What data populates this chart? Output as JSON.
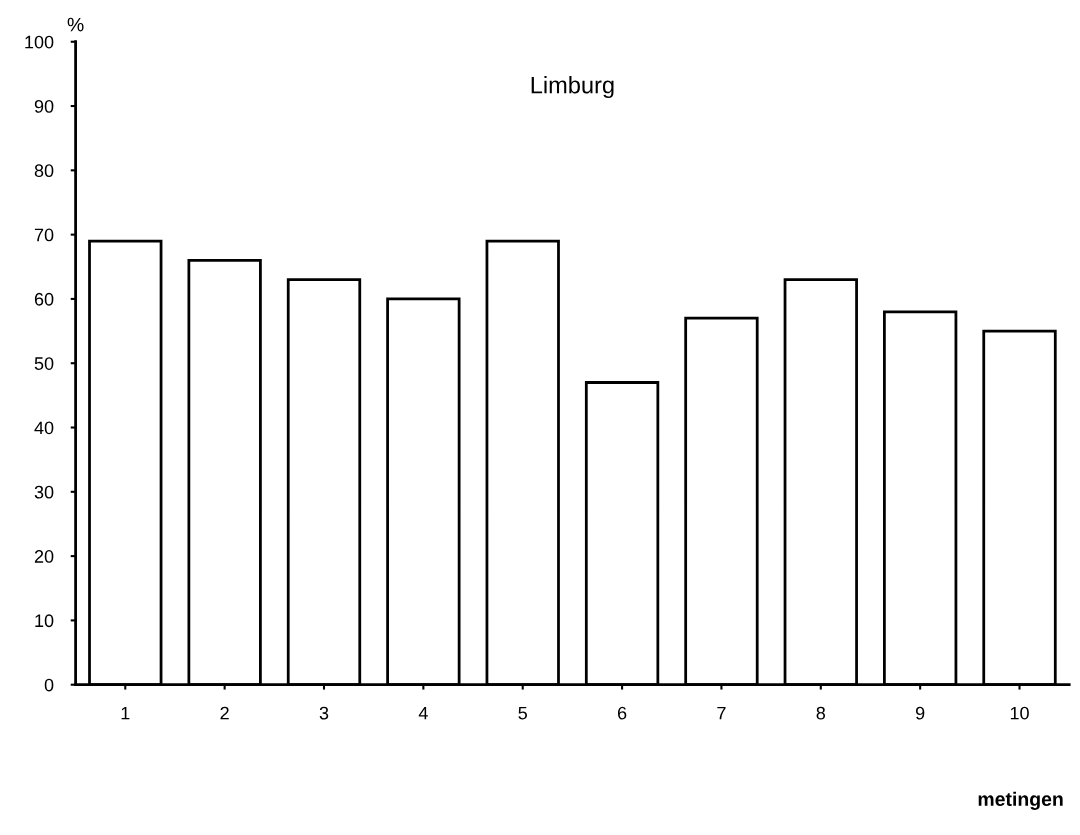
{
  "chart_data": {
    "type": "bar",
    "title": "Limburg",
    "ylabel": "%",
    "xlabel": "metingen",
    "categories": [
      "1",
      "2",
      "3",
      "4",
      "5",
      "6",
      "7",
      "8",
      "9",
      "10"
    ],
    "values": [
      69,
      66,
      63,
      60,
      69,
      47,
      57,
      63,
      58,
      55
    ],
    "color": "#ffffff",
    "ylim": [
      0,
      100
    ],
    "yticks": [
      0,
      10,
      20,
      30,
      40,
      50,
      60,
      70,
      80,
      90,
      100
    ],
    "grid": false,
    "legend": false
  }
}
